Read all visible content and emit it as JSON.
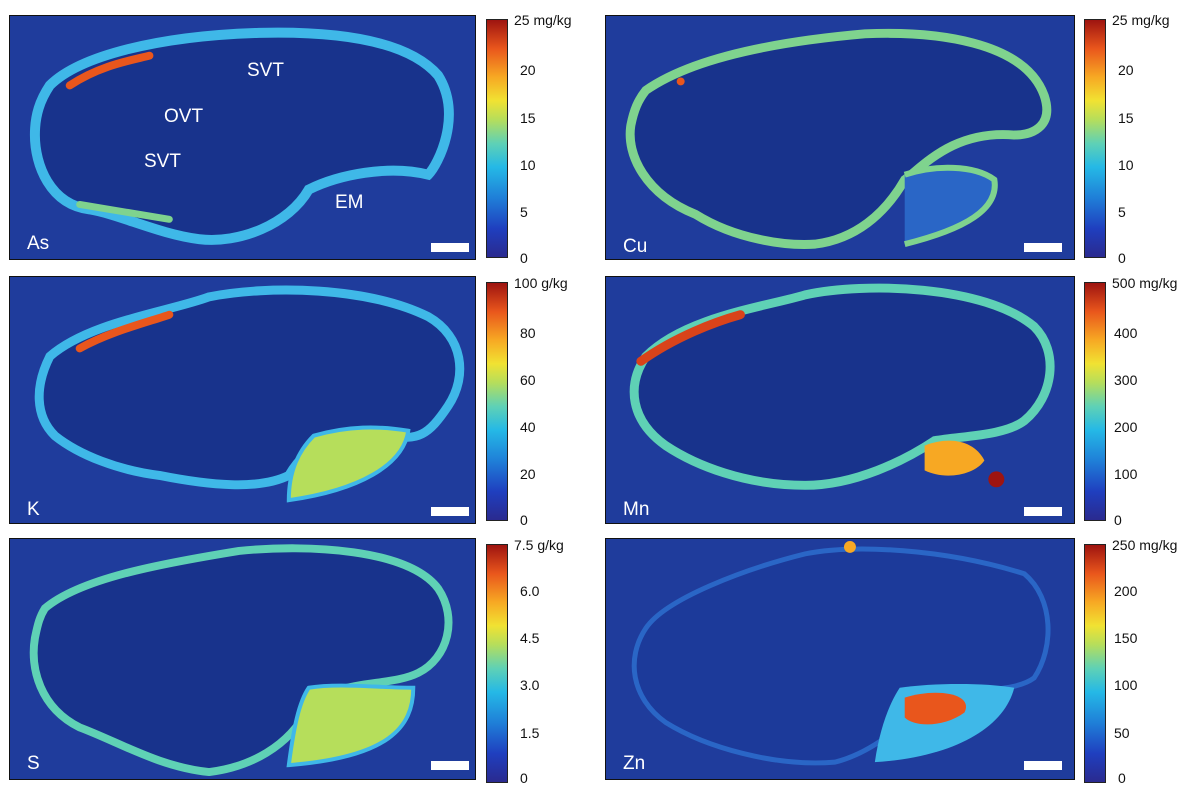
{
  "panels": [
    {
      "element": "As",
      "unit_top": "25 mg/kg",
      "ticks": [
        "20",
        "15",
        "10",
        "5",
        "0"
      ]
    },
    {
      "element": "Cu",
      "unit_top": "25 mg/kg",
      "ticks": [
        "20",
        "15",
        "10",
        "5",
        "0"
      ]
    },
    {
      "element": "K",
      "unit_top": "100 g/kg",
      "ticks": [
        "80",
        "60",
        "40",
        "20",
        "0"
      ]
    },
    {
      "element": "Mn",
      "unit_top": "500 mg/kg",
      "ticks": [
        "400",
        "300",
        "200",
        "100",
        "0"
      ]
    },
    {
      "element": "S",
      "unit_top": "7.5 g/kg",
      "ticks": [
        "6.0",
        "4.5",
        "3.0",
        "1.5",
        "0"
      ]
    },
    {
      "element": "Zn",
      "unit_top": "250 mg/kg",
      "ticks": [
        "200",
        "150",
        "100",
        "50",
        "0"
      ]
    }
  ],
  "annotations": {
    "ovt": "OVT",
    "svt_top": "SVT",
    "svt_left": "SVT",
    "em": "EM"
  },
  "colors": {
    "background": "#1f3c9c",
    "outer": "#1e3a98",
    "inner": "#18338c"
  }
}
